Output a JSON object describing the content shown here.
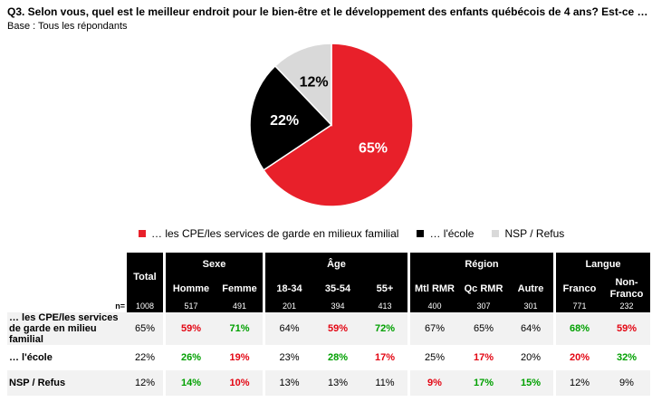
{
  "question": "Q3. Selon vous, quel est le meilleur endroit pour le bien-être et le développement des enfants québécois de 4 ans? Est-ce …",
  "base": "Base : Tous les répondants",
  "chart_data": {
    "type": "pie",
    "slices": [
      {
        "label": "… les CPE/les services de garde en milieux familial",
        "value": 65,
        "display": "65%",
        "color": "#e8202a"
      },
      {
        "label": "… l'école",
        "value": 22,
        "display": "22%",
        "color": "#000000"
      },
      {
        "label": "NSP / Refus",
        "value": 12,
        "display": "12%",
        "color": "#d9d9d9"
      }
    ]
  },
  "legend": [
    {
      "label": "… les CPE/les services de garde en milieux familial",
      "color": "#e8202a"
    },
    {
      "label": "… l'école",
      "color": "#000000"
    },
    {
      "label": "NSP / Refus",
      "color": "#d9d9d9"
    }
  ],
  "table": {
    "total_label": "Total",
    "groups": {
      "sexe": "Sexe",
      "age": "Âge",
      "region": "Région",
      "langue": "Langue"
    },
    "columns": [
      "Homme",
      "Femme",
      "18-34",
      "35-54",
      "55+",
      "Mtl RMR",
      "Qc RMR",
      "Autre",
      "Franco",
      "Non-Franco"
    ],
    "n_label": "n=",
    "n": [
      "1008",
      "517",
      "491",
      "201",
      "394",
      "413",
      "400",
      "307",
      "301",
      "771",
      "232"
    ],
    "rows": [
      {
        "label": "… les CPE/les services de garde en milieu familial",
        "values": [
          "65%",
          "59%",
          "71%",
          "64%",
          "59%",
          "72%",
          "67%",
          "65%",
          "64%",
          "68%",
          "59%"
        ],
        "sig": [
          "",
          "r",
          "g",
          "",
          "r",
          "g",
          "",
          "",
          "",
          "g",
          "r"
        ]
      },
      {
        "label": "… l'école",
        "values": [
          "22%",
          "26%",
          "19%",
          "23%",
          "28%",
          "17%",
          "25%",
          "17%",
          "20%",
          "20%",
          "32%"
        ],
        "sig": [
          "",
          "g",
          "r",
          "",
          "g",
          "r",
          "",
          "r",
          "",
          "r",
          "g"
        ]
      },
      {
        "label": "NSP / Refus",
        "values": [
          "12%",
          "14%",
          "10%",
          "13%",
          "13%",
          "11%",
          "9%",
          "17%",
          "15%",
          "12%",
          "9%"
        ],
        "sig": [
          "",
          "g",
          "r",
          "",
          "",
          "",
          "r",
          "g",
          "g",
          "",
          ""
        ]
      }
    ],
    "sig_colors": {
      "g": "#00a000",
      "r": "#e30613"
    }
  }
}
